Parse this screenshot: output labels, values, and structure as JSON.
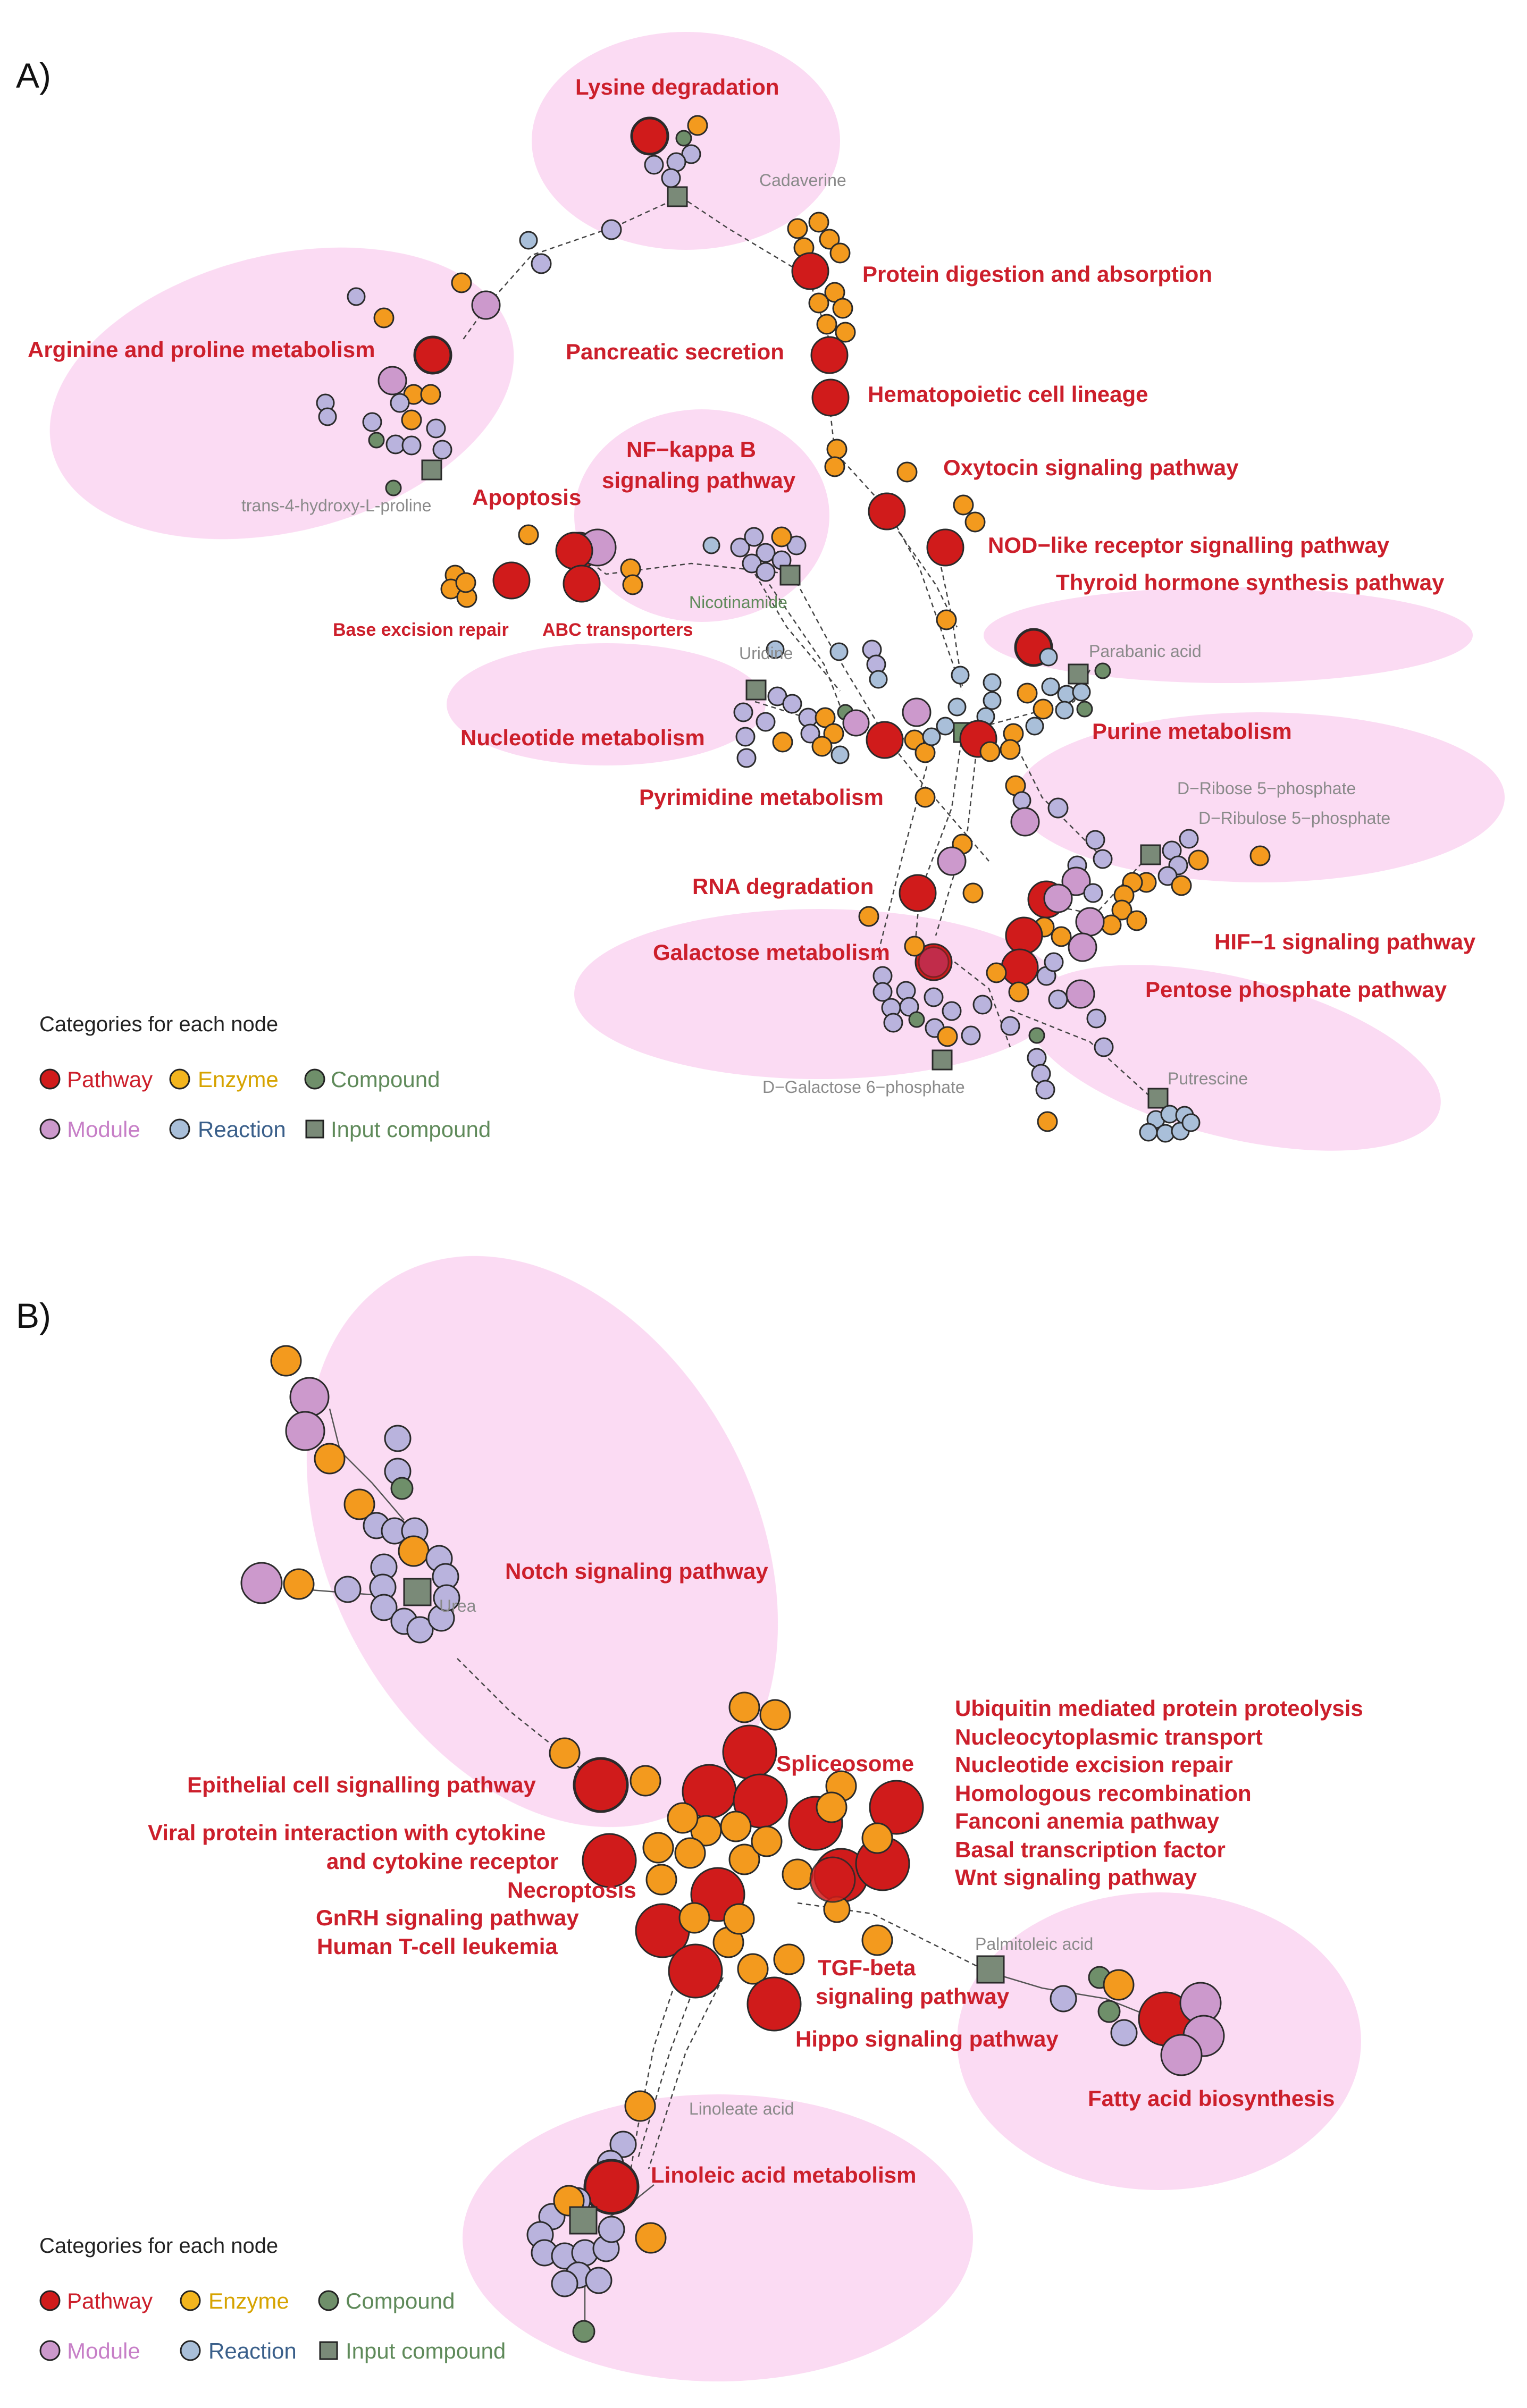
{
  "colors": {
    "pathway": "#d01b1b",
    "enzyme": "#f39a1e",
    "compound": "#6f8f6a",
    "module": "#cc99cc",
    "reaction": "#a9bfd9",
    "input_compound": "#7a8a78",
    "cluster_bg": "#fbd7f2",
    "label_red": "#cc1f2b"
  },
  "panels": [
    {
      "letter": "A)",
      "legend": {
        "title": "Categories for each node",
        "items": [
          {
            "label": "Pathway",
            "color": "#cc1f2b",
            "icon": "circle",
            "fill": "#d01b1b"
          },
          {
            "label": "Enzyme",
            "color": "#d6a300",
            "icon": "circle",
            "fill": "#f3b51e"
          },
          {
            "label": "Compound",
            "color": "#5f8a5a",
            "icon": "circle",
            "fill": "#6f8f6a"
          },
          {
            "label": "Module",
            "color": "#c77fc7",
            "icon": "circle",
            "fill": "#cc99cc"
          },
          {
            "label": "Reaction",
            "color": "#3a5f8a",
            "icon": "circle",
            "fill": "#a9bfd9"
          },
          {
            "label": "Input compound",
            "color": "#5f8a5a",
            "icon": "square",
            "fill": "#7a8a78"
          }
        ]
      },
      "pathway_labels": [
        "Lysine degradation",
        "Protein digestion and absorption",
        "Arginine and proline metabolism",
        "Pancreatic secretion",
        "Hematopoietic cell lineage",
        "NF−kappa B",
        "signaling pathway",
        "Oxytocin signaling pathway",
        "Apoptosis",
        "NOD−like receptor signalling pathway",
        "Thyroid hormone synthesis pathway",
        "Base excision repair",
        "ABC transporters",
        "Nucleotide metabolism",
        "Purine metabolism",
        "Pyrimidine metabolism",
        "RNA degradation",
        "HIF−1 signaling pathway",
        "Galactose metabolism",
        "Pentose phosphate pathway"
      ],
      "compound_labels": [
        "Cadaverine",
        "trans-4-hydroxy-L-proline",
        "Nicotinamide",
        "Uridine",
        "Parabanic acid",
        "D−Ribose 5−phosphate",
        "D−Ribulose 5−phosphate",
        "D−Galactose 6−phosphate",
        "Putrescine"
      ]
    },
    {
      "letter": "B)",
      "legend": {
        "title": "Categories for each node",
        "items": [
          {
            "label": "Pathway",
            "color": "#cc1f2b",
            "icon": "circle",
            "fill": "#d01b1b"
          },
          {
            "label": "Enzyme",
            "color": "#d6a300",
            "icon": "circle",
            "fill": "#f3b51e"
          },
          {
            "label": "Compound",
            "color": "#5f8a5a",
            "icon": "circle",
            "fill": "#6f8f6a"
          },
          {
            "label": "Module",
            "color": "#c77fc7",
            "icon": "circle",
            "fill": "#cc99cc"
          },
          {
            "label": "Reaction",
            "color": "#3a5f8a",
            "icon": "circle",
            "fill": "#a9bfd9"
          },
          {
            "label": "Input compound",
            "color": "#5f8a5a",
            "icon": "square",
            "fill": "#7a8a78"
          }
        ]
      },
      "pathway_labels": [
        "Notch signaling pathway",
        "Ubiquitin mediated protein proteolysis",
        "Nucleocytoplasmic transport",
        "Nucleotide excision repair",
        "Homologous recombination",
        "Fanconi anemia pathway",
        "Basal transcription factor",
        "Wnt signaling pathway",
        "Spliceosome",
        "Epithelial cell signalling pathway",
        "Viral protein interaction with cytokine",
        "and cytokine receptor",
        "Necroptosis",
        "GnRH signaling pathway",
        "Human T-cell leukemia",
        "TGF-beta",
        "signaling pathway",
        "Hippo signaling pathway",
        "Fatty acid biosynthesis",
        "Linoleic acid metabolism"
      ],
      "compound_labels": [
        "Urea",
        "Palmitoleic acid",
        "Linoleate acid"
      ]
    }
  ]
}
